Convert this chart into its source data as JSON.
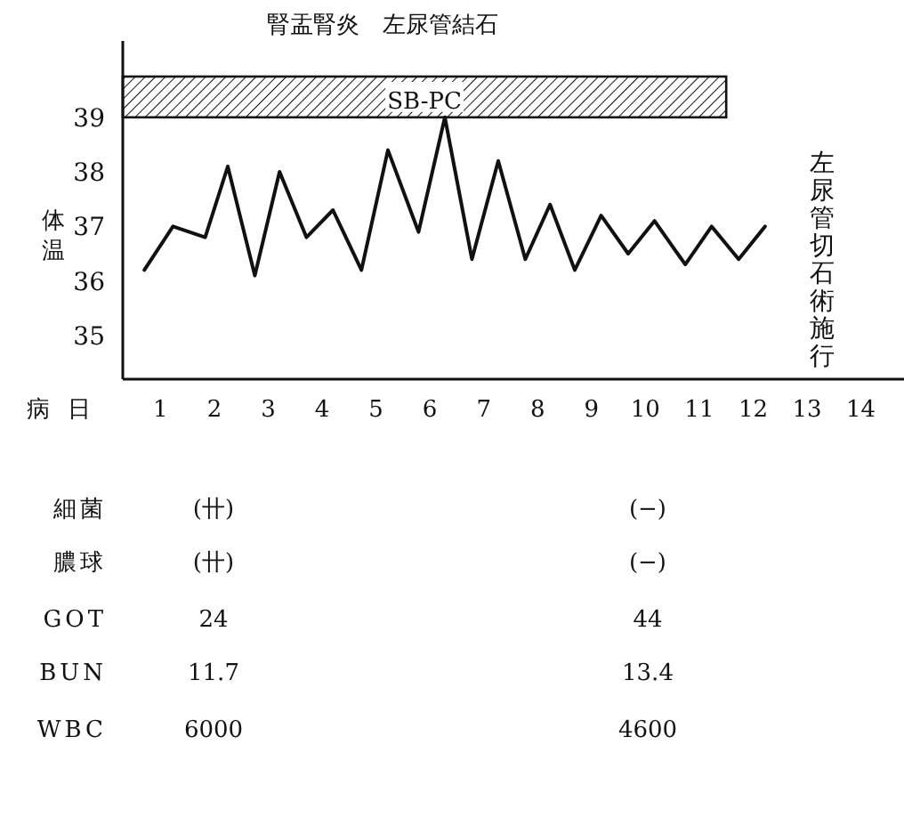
{
  "chart_data": {
    "type": "line",
    "title": "腎盂腎炎　左尿管結石",
    "xlabel": "病日",
    "ylabel": "体温",
    "x": [
      0.7,
      1.23,
      1.83,
      2.25,
      2.75,
      3.21,
      3.71,
      4.2,
      4.73,
      5.22,
      5.79,
      6.28,
      6.78,
      7.27,
      7.77,
      8.23,
      8.69,
      9.18,
      9.68,
      10.17,
      10.74,
      11.23,
      11.73,
      12.22
    ],
    "series": [
      {
        "color": "#111111",
        "values": [
          36.2,
          37.0,
          36.8,
          38.1,
          36.1,
          38.0,
          36.8,
          37.3,
          36.2,
          38.4,
          36.9,
          39.0,
          36.4,
          38.2,
          36.4,
          37.4,
          36.2,
          37.2,
          36.5,
          37.1,
          36.3,
          37.0,
          36.4,
          37.0
        ]
      }
    ],
    "xlim": [
      0.3,
      14.8
    ],
    "ylim": [
      34.2,
      40.4
    ],
    "xticks": [
      1,
      2,
      3,
      4,
      5,
      6,
      7,
      8,
      9,
      10,
      11,
      12,
      13,
      14
    ],
    "yticks": [
      35,
      36,
      37,
      38,
      39
    ],
    "grid": false,
    "marker": "none",
    "line_style": "solid",
    "bands": [
      {
        "axis": "x",
        "from": 0.3,
        "to": 11.5,
        "label": "SB-PC",
        "color": "#111111"
      }
    ],
    "annotations": [
      "左尿管切石術施行",
      "細菌",
      "(卄)",
      "(−)",
      "膿球",
      "(卄)",
      "(−)",
      "GOT",
      "24",
      "44",
      "BUN",
      "11.7",
      "13.4",
      "WBC",
      "6000",
      "4600"
    ]
  }
}
